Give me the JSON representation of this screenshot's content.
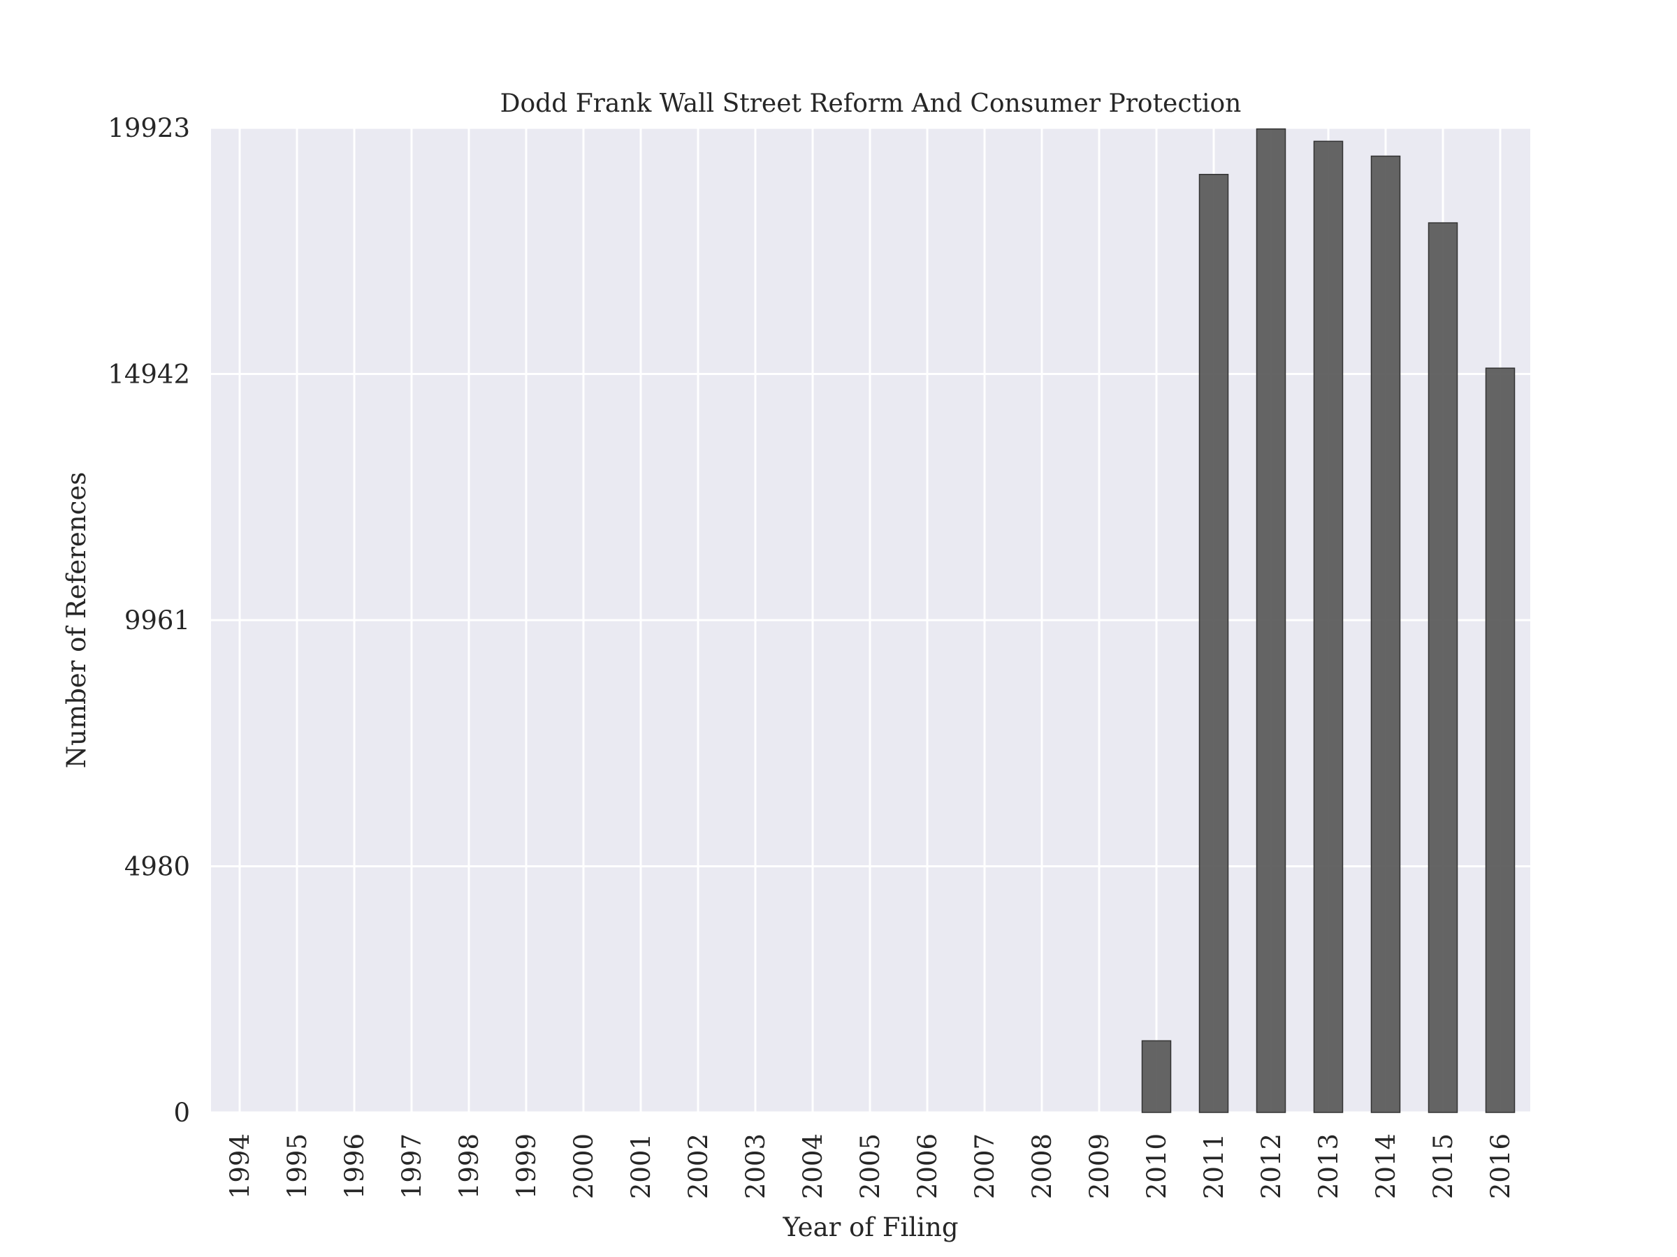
{
  "chart_data": {
    "type": "bar",
    "title": "Dodd Frank Wall Street Reform And Consumer Protection",
    "xlabel": "Year of Filing",
    "ylabel": "Number of References",
    "categories": [
      "1994",
      "1995",
      "1996",
      "1997",
      "1998",
      "1999",
      "2000",
      "2001",
      "2002",
      "2003",
      "2004",
      "2005",
      "2006",
      "2007",
      "2008",
      "2009",
      "2010",
      "2011",
      "2012",
      "2013",
      "2014",
      "2015",
      "2016"
    ],
    "values": [
      0,
      0,
      0,
      0,
      0,
      0,
      0,
      0,
      0,
      0,
      0,
      0,
      0,
      0,
      0,
      0,
      1450,
      18980,
      19900,
      19650,
      19350,
      18000,
      15060
    ],
    "ylim": [
      0,
      19923
    ],
    "yticks": [
      "0",
      "4980",
      "9961",
      "14942",
      "19923"
    ],
    "ytick_values": [
      0,
      4980,
      9961,
      14942,
      19923
    ],
    "grid": true,
    "colors": {
      "background": "#eaeaf2",
      "grid": "#ffffff",
      "bar": "#595959",
      "bar_edge": "#333333"
    }
  }
}
